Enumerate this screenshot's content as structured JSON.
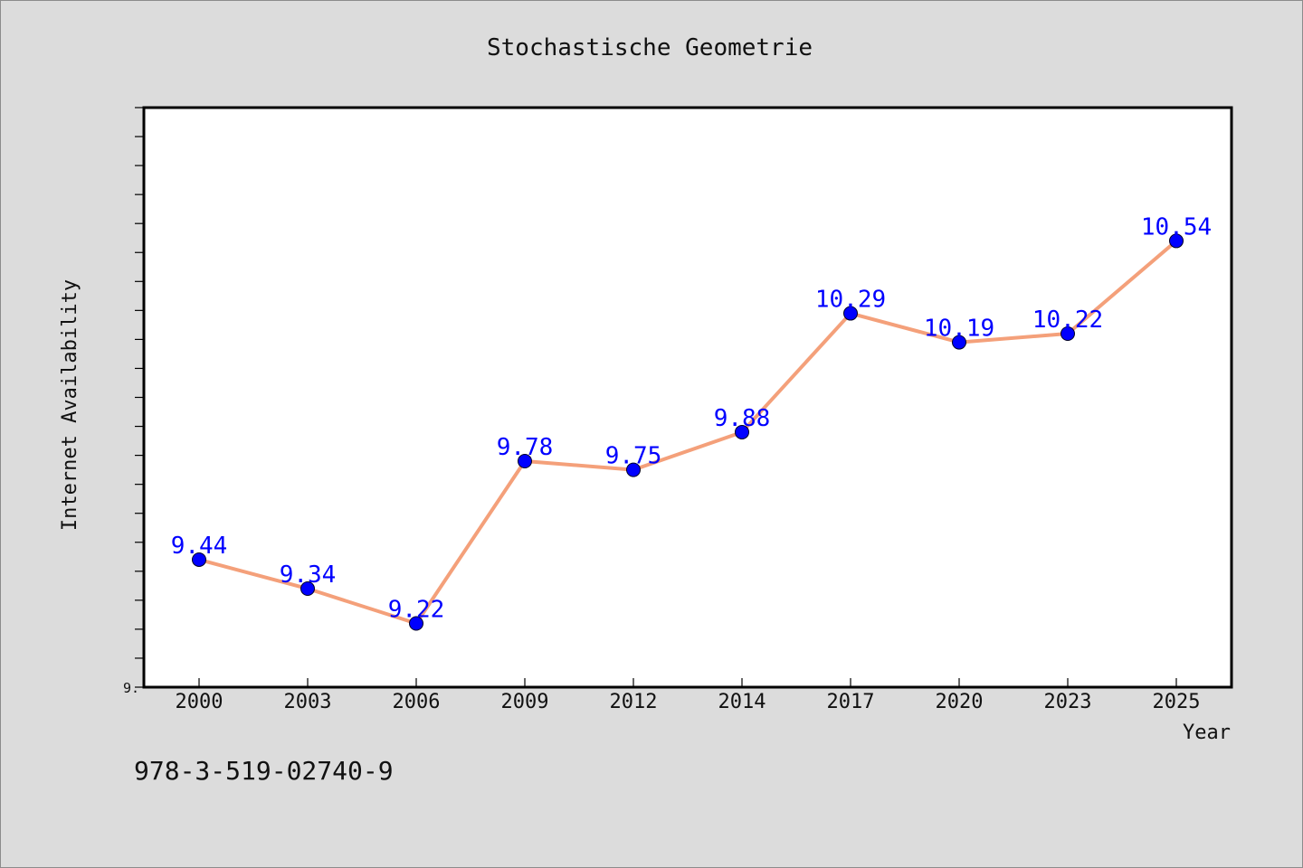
{
  "chart_data": {
    "type": "line",
    "title": "Stochastische Geometrie",
    "xlabel": "Year",
    "ylabel": "Internet Availability",
    "categories": [
      "2000",
      "2003",
      "2006",
      "2009",
      "2012",
      "2014",
      "2017",
      "2020",
      "2023",
      "2025"
    ],
    "series": [
      {
        "values": [
          9.44,
          9.34,
          9.22,
          9.78,
          9.75,
          9.88,
          10.29,
          10.19,
          10.22,
          10.54
        ],
        "labels": [
          "9.44",
          "9.34",
          "9.22",
          "9.78",
          "9.75",
          "9.88",
          "10.29",
          "10.19",
          "10.22",
          "10.54"
        ],
        "line_color": "#f4a07a",
        "marker_color": "#0000ff"
      }
    ],
    "ylim": [
      9.0,
      11.0
    ],
    "y_tick_label": "9.",
    "grid": false,
    "legend": "none"
  },
  "footer": {
    "isbn": "978-3-519-02740-9"
  },
  "colors": {
    "background": "#dcdcdc",
    "plot_bg": "#ffffff",
    "data_label": "#0000ff"
  }
}
